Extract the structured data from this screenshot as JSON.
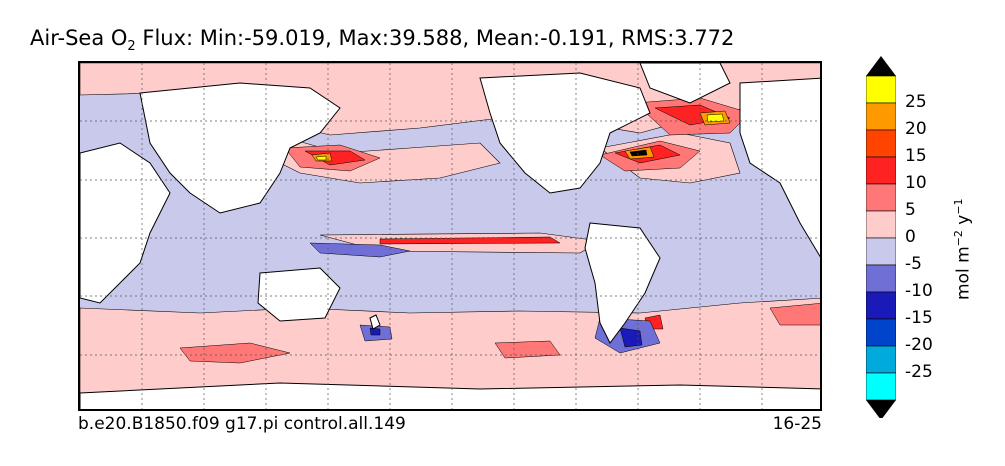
{
  "title": {
    "prefix": "Air-Sea O",
    "subscript": "2",
    "suffix": " Flux: Min:-59.019, Max:39.588, Mean:-0.191, RMS:3.772"
  },
  "footer": {
    "run": "b.e20.B1850.f09 g17.pi control.all.149",
    "period": "16-25"
  },
  "colorbar": {
    "units_prefix": "mol m",
    "units_exp1": "−2",
    "units_mid": " y",
    "units_exp2": "−1",
    "levels": [
      {
        "label": "25",
        "color": "#ffff00"
      },
      {
        "label": "20",
        "color": "#ff9900"
      },
      {
        "label": "15",
        "color": "#ff4400"
      },
      {
        "label": "10",
        "color": "#ff2222"
      },
      {
        "label": "5",
        "color": "#ff7777"
      },
      {
        "label": "0",
        "color": "#ffcccc"
      },
      {
        "label": "-5",
        "color": "#c9c9ec"
      },
      {
        "label": "-10",
        "color": "#6f6fd6"
      },
      {
        "label": "-15",
        "color": "#1a1ab8"
      },
      {
        "label": "-20",
        "color": "#0044cc"
      },
      {
        "label": "-25",
        "color": "#00aadd"
      }
    ],
    "top_color": "#000000",
    "bottom_color": "#00ffff",
    "under_color": "#000000"
  },
  "map": {
    "ocean_base_color": "#c9c9ec",
    "land_color": "#ffffff",
    "coastline_color": "#000000",
    "grid_color": "#555555"
  }
}
